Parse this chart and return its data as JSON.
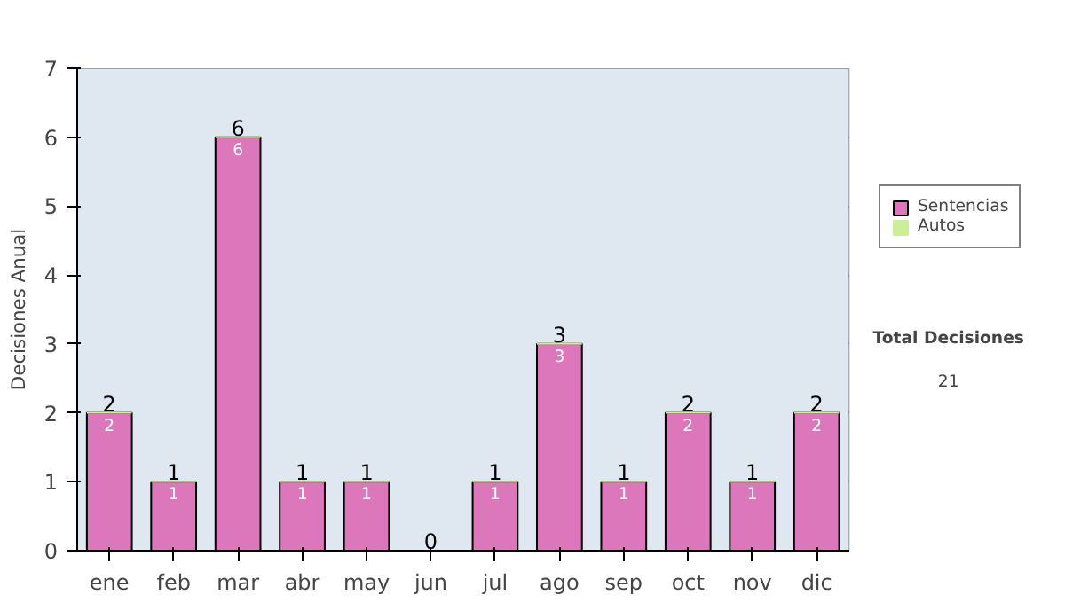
{
  "chart_data": {
    "type": "bar",
    "stacked": true,
    "ylabel": "Decisiones Anual",
    "categories": [
      "ene",
      "feb",
      "mar",
      "abr",
      "may",
      "jun",
      "jul",
      "ago",
      "sep",
      "oct",
      "nov",
      "dic"
    ],
    "series": [
      {
        "name": "Sentencias",
        "color": "#dd77bb",
        "values": [
          2,
          1,
          6,
          1,
          1,
          0,
          1,
          3,
          1,
          2,
          1,
          2
        ],
        "value_labels": [
          "2",
          "1",
          "6",
          "1",
          "1",
          null,
          "1",
          "3",
          "1",
          "2",
          "1",
          "2"
        ]
      },
      {
        "name": "Autos",
        "color": "#ccee99",
        "values": [
          0,
          0,
          0,
          0,
          0,
          0,
          0,
          0,
          0,
          0,
          0,
          0
        ]
      }
    ],
    "totals": [
      "2",
      "1",
      "6",
      "1",
      "1",
      "0",
      "1",
      "3",
      "1",
      "2",
      "1",
      "2"
    ],
    "ylim": [
      0,
      7
    ],
    "yticks": [
      0,
      1,
      2,
      3,
      4,
      5,
      6,
      7
    ],
    "grid": "y",
    "legend": "right",
    "annotations": [
      "Total Decisiones",
      "21"
    ]
  }
}
